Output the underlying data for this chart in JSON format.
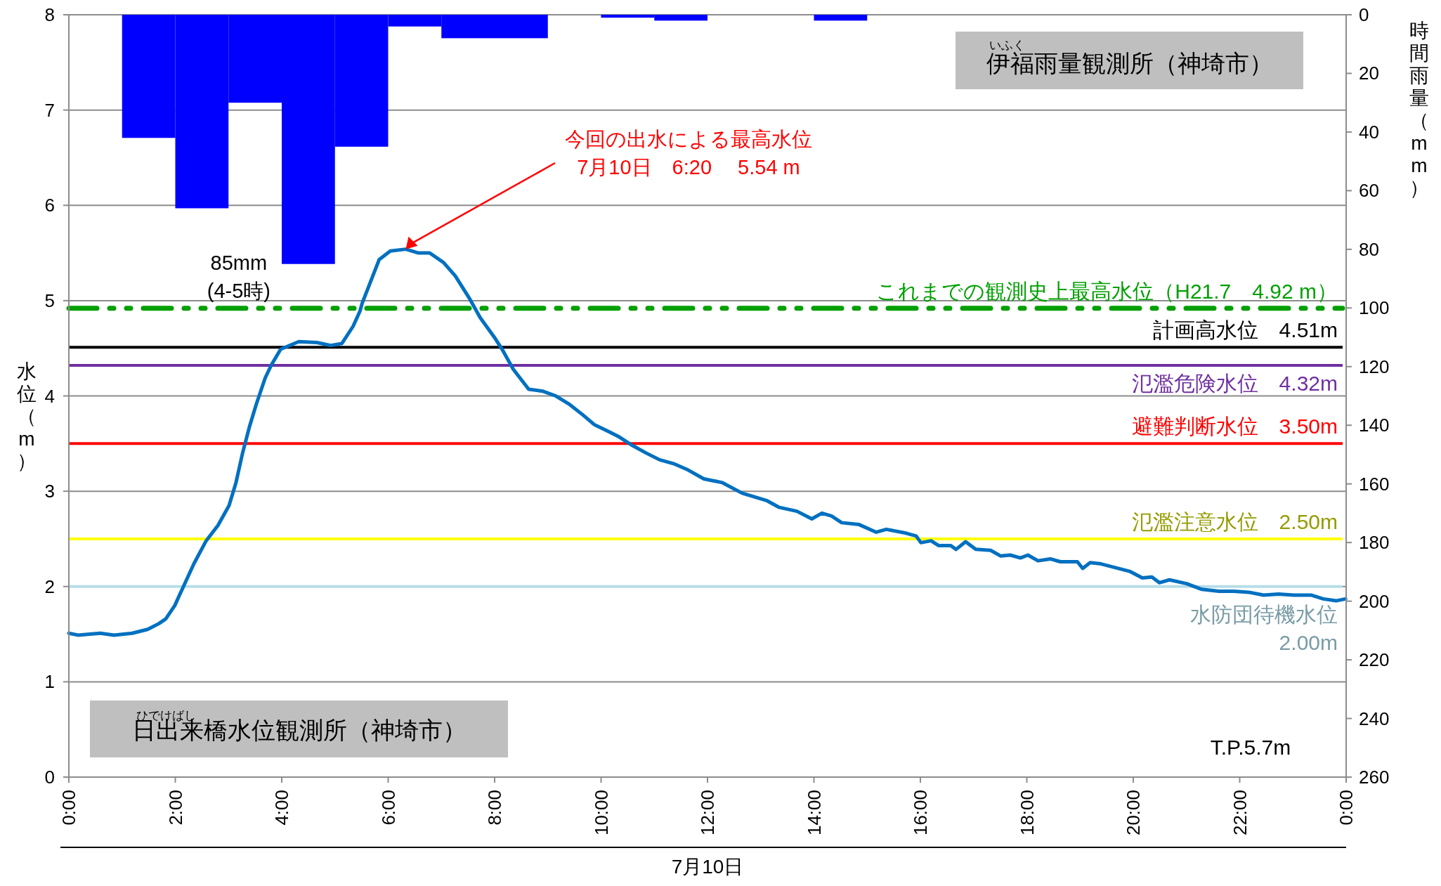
{
  "chart_data": {
    "type": "line",
    "xlabel": "7月10日",
    "ylabel": "水位（m）",
    "y2label": "時間雨量（mm）",
    "xlim": [
      0,
      24
    ],
    "xticks": [
      {
        "value": 0,
        "label": "0:00"
      },
      {
        "value": 2,
        "label": "2:00"
      },
      {
        "value": 4,
        "label": "4:00"
      },
      {
        "value": 6,
        "label": "6:00"
      },
      {
        "value": 8,
        "label": "8:00"
      },
      {
        "value": 10,
        "label": "10:00"
      },
      {
        "value": 12,
        "label": "12:00"
      },
      {
        "value": 14,
        "label": "14:00"
      },
      {
        "value": 16,
        "label": "16:00"
      },
      {
        "value": 18,
        "label": "18:00"
      },
      {
        "value": 20,
        "label": "20:00"
      },
      {
        "value": 22,
        "label": "22:00"
      },
      {
        "value": 24,
        "label": "0:00"
      }
    ],
    "ylim": [
      0,
      8
    ],
    "yticks": [
      0,
      1,
      2,
      3,
      4,
      5,
      6,
      7,
      8
    ],
    "y2lim": [
      260,
      0
    ],
    "y2ticks": [
      0,
      20,
      40,
      60,
      80,
      100,
      120,
      140,
      160,
      180,
      200,
      220,
      240,
      260
    ],
    "grid": "y",
    "series": [
      {
        "type": "bar",
        "axis": "y2",
        "color": "#0000ff",
        "x": [
          0.5,
          1.5,
          2.5,
          3.5,
          4.5,
          5.5,
          6.5,
          7.5,
          8.5,
          9.5,
          10.5,
          11.5,
          12.5,
          13.5,
          14.5,
          15.5,
          16.5,
          17.5,
          18.5,
          19.5,
          20.5,
          21.5,
          22.5,
          23.5
        ],
        "values": [
          0,
          42,
          66,
          30,
          85,
          45,
          4,
          8,
          8,
          0,
          1,
          2,
          0,
          0,
          2,
          0,
          0,
          0,
          0,
          0,
          0,
          0,
          0,
          0
        ]
      },
      {
        "color": "#0070c0",
        "x": [
          0,
          0.17,
          0.59,
          0.85,
          1.19,
          1.48,
          1.69,
          1.82,
          1.99,
          2.12,
          2.35,
          2.58,
          2.8,
          3.01,
          3.14,
          3.26,
          3.39,
          3.52,
          3.69,
          3.81,
          3.98,
          4.32,
          4.66,
          4.92,
          5.13,
          5.34,
          5.47,
          5.51,
          5.83,
          6.04,
          6.33,
          6.57,
          6.78,
          7.04,
          7.26,
          7.52,
          7.73,
          7.99,
          8.14,
          8.35,
          8.64,
          8.9,
          9.15,
          9.41,
          9.66,
          9.87,
          10.13,
          10.34,
          10.59,
          10.85,
          11.1,
          11.36,
          11.61,
          11.93,
          12.28,
          12.65,
          13.12,
          13.35,
          13.68,
          13.96,
          14.15,
          14.33,
          14.52,
          14.85,
          15.17,
          15.36,
          15.73,
          15.92,
          16.01,
          16.2,
          16.34,
          16.57,
          16.67,
          16.85,
          17.04,
          17.32,
          17.51,
          17.69,
          17.88,
          18.02,
          18.21,
          18.44,
          18.63,
          18.95,
          19.05,
          19.19,
          19.37,
          19.65,
          19.93,
          20.17,
          20.35,
          20.49,
          20.68,
          21.0,
          21.29,
          21.61,
          21.89,
          22.17,
          22.45,
          22.73,
          23.01,
          23.34,
          23.57,
          23.81,
          23.99
        ],
        "values": [
          1.51,
          1.49,
          1.51,
          1.49,
          1.51,
          1.55,
          1.61,
          1.66,
          1.8,
          1.96,
          2.24,
          2.48,
          2.64,
          2.85,
          3.09,
          3.39,
          3.67,
          3.91,
          4.19,
          4.33,
          4.49,
          4.57,
          4.56,
          4.53,
          4.55,
          4.73,
          4.89,
          4.97,
          5.43,
          5.52,
          5.54,
          5.5,
          5.5,
          5.4,
          5.26,
          5.03,
          4.82,
          4.62,
          4.49,
          4.28,
          4.07,
          4.05,
          4.0,
          3.91,
          3.8,
          3.7,
          3.63,
          3.57,
          3.48,
          3.4,
          3.33,
          3.29,
          3.23,
          3.13,
          3.09,
          2.98,
          2.9,
          2.83,
          2.79,
          2.71,
          2.77,
          2.74,
          2.67,
          2.65,
          2.57,
          2.6,
          2.56,
          2.53,
          2.46,
          2.48,
          2.43,
          2.43,
          2.39,
          2.47,
          2.39,
          2.38,
          2.32,
          2.33,
          2.3,
          2.33,
          2.27,
          2.29,
          2.26,
          2.26,
          2.19,
          2.25,
          2.24,
          2.2,
          2.16,
          2.09,
          2.1,
          2.04,
          2.07,
          2.03,
          1.97,
          1.95,
          1.95,
          1.94,
          1.91,
          1.92,
          1.91,
          1.91,
          1.87,
          1.85,
          1.87
        ]
      }
    ],
    "ref_lines": [
      {
        "axis": "y",
        "value": 4.92,
        "label": "これまでの観測史上最高水位（H21.7　4.92 m）",
        "color": "#00a000",
        "line_style": "dashed"
      },
      {
        "axis": "y",
        "value": 4.51,
        "label": "計画高水位　4.51m",
        "color": "#000000"
      },
      {
        "axis": "y",
        "value": 4.32,
        "label": "氾濫危険水位　4.32m",
        "color": "#7030a0"
      },
      {
        "axis": "y",
        "value": 3.5,
        "label": "避難判断水位　3.50m",
        "color": "#ff0000"
      },
      {
        "axis": "y",
        "value": 2.5,
        "label": "氾濫注意水位　2.50m",
        "color": "#ffff00"
      },
      {
        "axis": "y",
        "value": 2.0,
        "label": "水防団待機水位\n2.00m",
        "color": "#b7dde8"
      }
    ],
    "annotations": [
      "今回の出水による最高水位\n7月10日　6:20　 5.54 m",
      {
        "text": "85mm\n(4-5時)",
        "x": 4.5,
        "y": 5.38
      },
      "いふく",
      "伊福雨量観測所（神埼市）",
      "ひでけばし",
      "日出来橋水位観測所（神埼市）",
      "T.P.5.7m"
    ]
  }
}
